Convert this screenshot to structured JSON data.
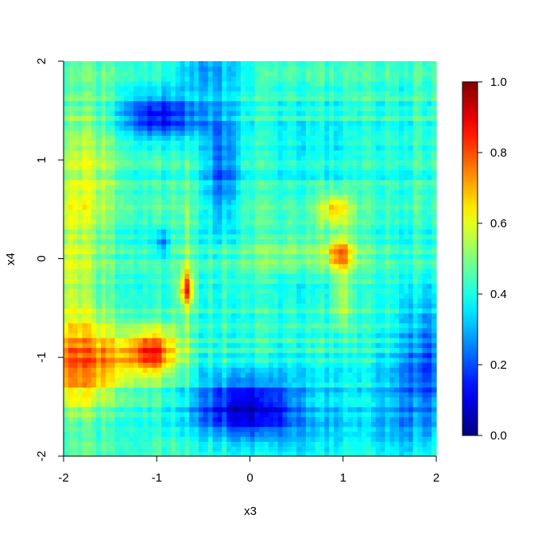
{
  "chart_data": {
    "type": "heatmap",
    "title": "",
    "xlabel": "x3",
    "ylabel": "x4",
    "xlim": [
      -2,
      2
    ],
    "ylim": [
      -2,
      2
    ],
    "x_ticks": [
      -2,
      -1,
      0,
      1,
      2
    ],
    "y_ticks": [
      -2,
      -1,
      0,
      1,
      2
    ],
    "x_tick_labels": [
      "-2",
      "-1",
      "0",
      "1",
      "2"
    ],
    "y_tick_labels": [
      "-2",
      "-1",
      "0",
      "1",
      "2"
    ],
    "colorbar": {
      "min": 0.0,
      "max": 1.0,
      "ticks": [
        0.0,
        0.2,
        0.4,
        0.6,
        0.8,
        1.0
      ],
      "tick_labels": [
        "0.0",
        "0.2",
        "0.4",
        "0.6",
        "0.8",
        "1.0"
      ],
      "colormap": "jet"
    },
    "grid": false,
    "base_value": 0.42,
    "features": [
      {
        "cx": -1.05,
        "cy": -0.95,
        "sx": 0.18,
        "sy": 0.17,
        "v": 0.42
      },
      {
        "cx": -1.9,
        "cy": -1.1,
        "sx": 0.3,
        "sy": 0.25,
        "v": 0.22
      },
      {
        "cx": -1.45,
        "cy": -1.05,
        "sx": 0.18,
        "sy": 0.18,
        "v": 0.12
      },
      {
        "cx": -1.7,
        "cy": -0.9,
        "sx": 0.3,
        "sy": 0.3,
        "v": 0.1
      },
      {
        "cx": -2.0,
        "cy": -0.15,
        "sx": 0.25,
        "sy": 0.9,
        "v": 0.14
      },
      {
        "cx": -1.7,
        "cy": 0.9,
        "sx": 0.25,
        "sy": 0.5,
        "v": 0.1
      },
      {
        "cx": -0.68,
        "cy": -0.3,
        "sx": 0.05,
        "sy": 0.12,
        "v": 0.33
      },
      {
        "cx": -0.68,
        "cy": -0.3,
        "sx": 0.04,
        "sy": 0.9,
        "v": 0.1
      },
      {
        "cx": 0.97,
        "cy": 0.05,
        "sx": 0.09,
        "sy": 0.12,
        "v": 0.3
      },
      {
        "cx": 0.92,
        "cy": 0.5,
        "sx": 0.12,
        "sy": 0.12,
        "v": 0.23
      },
      {
        "cx": 0.98,
        "cy": -0.4,
        "sx": 0.07,
        "sy": 0.2,
        "v": 0.16
      },
      {
        "cx": 0.55,
        "cy": 0.0,
        "sx": 0.5,
        "sy": 0.2,
        "v": 0.09
      },
      {
        "cx": -1.0,
        "cy": 1.45,
        "sx": 0.28,
        "sy": 0.14,
        "v": -0.22
      },
      {
        "cx": -0.75,
        "cy": 1.45,
        "sx": 0.4,
        "sy": 0.18,
        "v": -0.1
      },
      {
        "cx": -0.3,
        "cy": 0.9,
        "sx": 0.12,
        "sy": 0.4,
        "v": -0.2
      },
      {
        "cx": -0.45,
        "cy": 1.9,
        "sx": 0.3,
        "sy": 0.12,
        "v": -0.15
      },
      {
        "cx": 0.1,
        "cy": -1.5,
        "sx": 0.25,
        "sy": 0.2,
        "v": -0.22
      },
      {
        "cx": -0.35,
        "cy": -1.5,
        "sx": 0.3,
        "sy": 0.2,
        "v": -0.2
      },
      {
        "cx": 0.5,
        "cy": -1.6,
        "sx": 0.5,
        "sy": 0.35,
        "v": -0.12
      },
      {
        "cx": 1.9,
        "cy": -1.05,
        "sx": 0.18,
        "sy": 0.5,
        "v": -0.18
      },
      {
        "cx": 1.6,
        "cy": -1.5,
        "sx": 0.3,
        "sy": 0.4,
        "v": -0.1
      },
      {
        "cx": -0.95,
        "cy": 0.15,
        "sx": 0.06,
        "sy": 0.1,
        "v": -0.15
      },
      {
        "cx": 0.7,
        "cy": 1.15,
        "sx": 0.4,
        "sy": 0.25,
        "v": -0.05
      },
      {
        "cx": 0.6,
        "cy": -0.2,
        "sx": 0.4,
        "sy": 0.15,
        "v": -0.07
      }
    ]
  }
}
